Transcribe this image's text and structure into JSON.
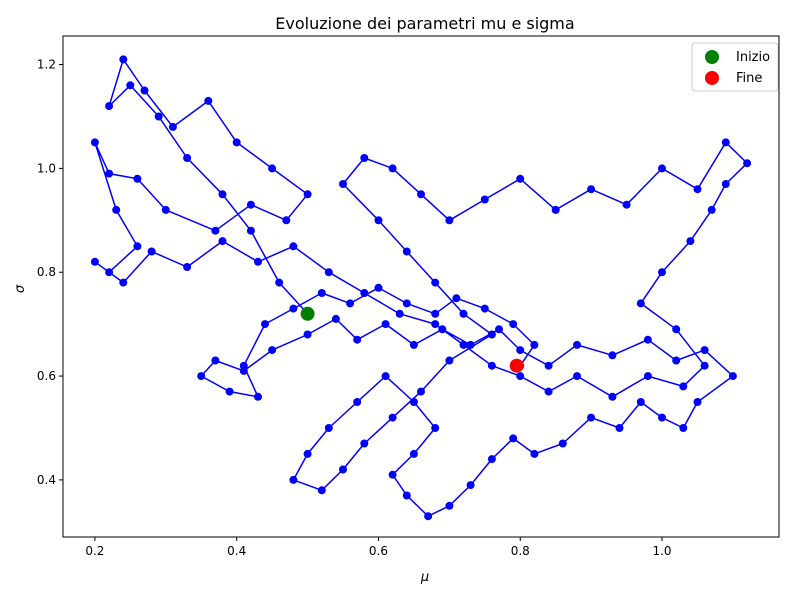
{
  "chart_data": {
    "type": "scatter",
    "title": "Evoluzione dei parametri mu e sigma",
    "xlabel": "μ",
    "ylabel": "σ",
    "xlim": [
      0.155,
      1.165
    ],
    "ylim": [
      0.29,
      1.255
    ],
    "xticks": [
      0.2,
      0.4,
      0.6,
      0.8,
      1.0
    ],
    "xtick_labels": [
      "0.2",
      "0.4",
      "0.6",
      "0.8",
      "1.0"
    ],
    "yticks": [
      0.4,
      0.6,
      0.8,
      1.0,
      1.2
    ],
    "ytick_labels": [
      "0.4",
      "0.6",
      "0.8",
      "1.0",
      "1.2"
    ],
    "grid": false,
    "legend_position": "top-right",
    "series": [
      {
        "name": "",
        "style": "line+markers",
        "color": "#0000ff",
        "points": [
          [
            0.5,
            0.72
          ],
          [
            0.46,
            0.78
          ],
          [
            0.42,
            0.88
          ],
          [
            0.38,
            0.95
          ],
          [
            0.33,
            1.02
          ],
          [
            0.29,
            1.1
          ],
          [
            0.25,
            1.16
          ],
          [
            0.22,
            1.12
          ],
          [
            0.24,
            1.21
          ],
          [
            0.27,
            1.15
          ],
          [
            0.31,
            1.08
          ],
          [
            0.36,
            1.13
          ],
          [
            0.4,
            1.05
          ],
          [
            0.45,
            1.0
          ],
          [
            0.5,
            0.95
          ],
          [
            0.47,
            0.9
          ],
          [
            0.42,
            0.93
          ],
          [
            0.37,
            0.88
          ],
          [
            0.3,
            0.92
          ],
          [
            0.26,
            0.98
          ],
          [
            0.22,
            0.99
          ],
          [
            0.2,
            1.05
          ],
          [
            0.23,
            0.92
          ],
          [
            0.26,
            0.85
          ],
          [
            0.22,
            0.8
          ],
          [
            0.2,
            0.82
          ],
          [
            0.24,
            0.78
          ],
          [
            0.28,
            0.84
          ],
          [
            0.33,
            0.81
          ],
          [
            0.38,
            0.86
          ],
          [
            0.43,
            0.82
          ],
          [
            0.48,
            0.85
          ],
          [
            0.53,
            0.8
          ],
          [
            0.58,
            0.76
          ],
          [
            0.63,
            0.72
          ],
          [
            0.68,
            0.7
          ],
          [
            0.72,
            0.66
          ],
          [
            0.76,
            0.62
          ],
          [
            0.8,
            0.6
          ],
          [
            0.84,
            0.57
          ],
          [
            0.88,
            0.6
          ],
          [
            0.93,
            0.56
          ],
          [
            0.98,
            0.6
          ],
          [
            1.03,
            0.58
          ],
          [
            1.06,
            0.62
          ],
          [
            1.02,
            0.69
          ],
          [
            0.97,
            0.74
          ],
          [
            1.0,
            0.8
          ],
          [
            1.04,
            0.86
          ],
          [
            1.07,
            0.92
          ],
          [
            1.09,
            0.97
          ],
          [
            1.12,
            1.01
          ],
          [
            1.09,
            1.05
          ],
          [
            1.05,
            0.96
          ],
          [
            1.0,
            1.0
          ],
          [
            0.95,
            0.93
          ],
          [
            0.9,
            0.96
          ],
          [
            0.85,
            0.92
          ],
          [
            0.8,
            0.98
          ],
          [
            0.75,
            0.94
          ],
          [
            0.7,
            0.9
          ],
          [
            0.66,
            0.95
          ],
          [
            0.62,
            1.0
          ],
          [
            0.58,
            1.02
          ],
          [
            0.55,
            0.97
          ],
          [
            0.6,
            0.9
          ],
          [
            0.64,
            0.84
          ],
          [
            0.68,
            0.78
          ],
          [
            0.72,
            0.72
          ],
          [
            0.76,
            0.68
          ],
          [
            0.7,
            0.63
          ],
          [
            0.66,
            0.57
          ],
          [
            0.62,
            0.52
          ],
          [
            0.58,
            0.47
          ],
          [
            0.55,
            0.42
          ],
          [
            0.52,
            0.38
          ],
          [
            0.48,
            0.4
          ],
          [
            0.5,
            0.45
          ],
          [
            0.53,
            0.5
          ],
          [
            0.57,
            0.55
          ],
          [
            0.61,
            0.6
          ],
          [
            0.65,
            0.55
          ],
          [
            0.68,
            0.5
          ],
          [
            0.65,
            0.45
          ],
          [
            0.62,
            0.41
          ],
          [
            0.64,
            0.37
          ],
          [
            0.67,
            0.33
          ],
          [
            0.7,
            0.35
          ],
          [
            0.73,
            0.39
          ],
          [
            0.76,
            0.44
          ],
          [
            0.79,
            0.48
          ],
          [
            0.82,
            0.45
          ],
          [
            0.86,
            0.47
          ],
          [
            0.9,
            0.52
          ],
          [
            0.94,
            0.5
          ],
          [
            0.97,
            0.55
          ],
          [
            1.0,
            0.52
          ],
          [
            1.03,
            0.5
          ],
          [
            1.05,
            0.55
          ],
          [
            1.1,
            0.6
          ],
          [
            1.06,
            0.65
          ],
          [
            1.02,
            0.63
          ],
          [
            0.98,
            0.67
          ],
          [
            0.93,
            0.64
          ],
          [
            0.88,
            0.66
          ],
          [
            0.84,
            0.62
          ],
          [
            0.8,
            0.65
          ],
          [
            0.77,
            0.69
          ],
          [
            0.73,
            0.66
          ],
          [
            0.69,
            0.69
          ],
          [
            0.65,
            0.66
          ],
          [
            0.61,
            0.7
          ],
          [
            0.57,
            0.67
          ],
          [
            0.54,
            0.71
          ],
          [
            0.5,
            0.68
          ],
          [
            0.45,
            0.65
          ],
          [
            0.41,
            0.61
          ],
          [
            0.37,
            0.63
          ],
          [
            0.35,
            0.6
          ],
          [
            0.39,
            0.57
          ],
          [
            0.43,
            0.56
          ],
          [
            0.41,
            0.62
          ],
          [
            0.44,
            0.7
          ],
          [
            0.48,
            0.73
          ],
          [
            0.52,
            0.76
          ],
          [
            0.56,
            0.74
          ],
          [
            0.6,
            0.77
          ],
          [
            0.64,
            0.74
          ],
          [
            0.68,
            0.72
          ],
          [
            0.71,
            0.75
          ],
          [
            0.75,
            0.73
          ],
          [
            0.79,
            0.7
          ],
          [
            0.82,
            0.66
          ],
          [
            0.8,
            0.62
          ],
          [
            0.795,
            0.62
          ]
        ]
      },
      {
        "name": "Inizio",
        "style": "marker",
        "color": "#008000",
        "points": [
          [
            0.5,
            0.72
          ]
        ]
      },
      {
        "name": "Fine",
        "style": "marker",
        "color": "#ff0000",
        "points": [
          [
            0.795,
            0.62
          ]
        ]
      }
    ]
  }
}
